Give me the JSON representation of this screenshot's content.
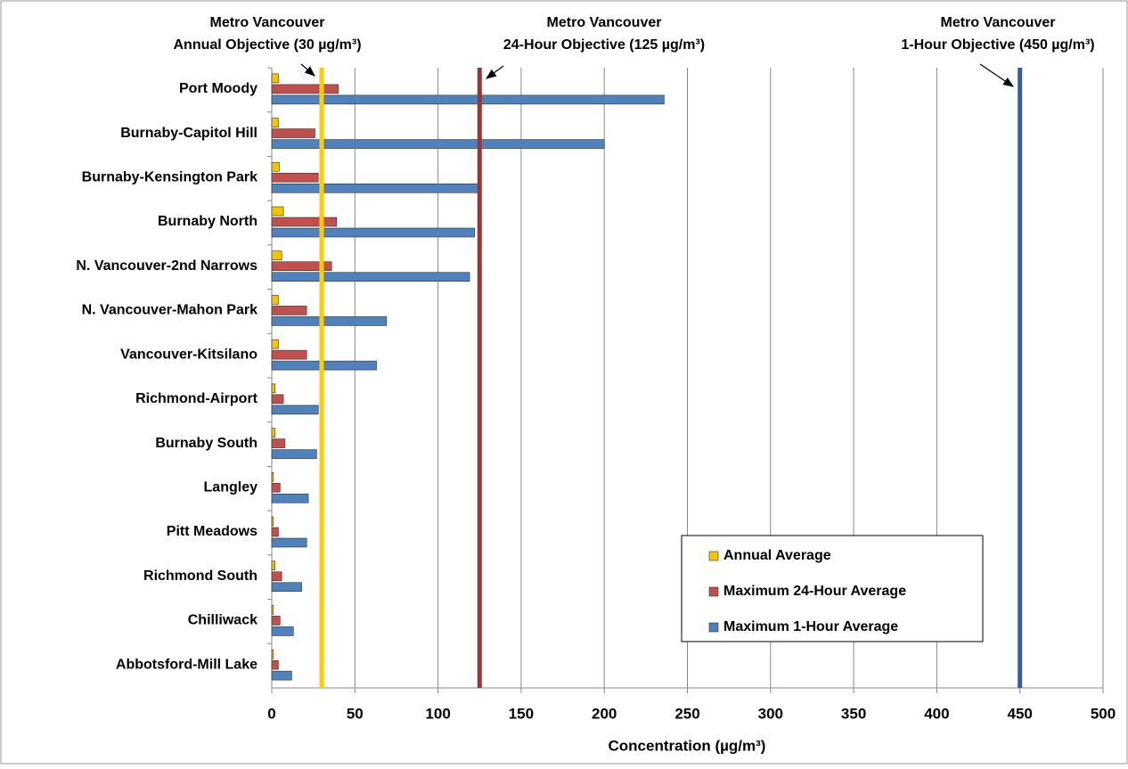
{
  "chart_data": {
    "type": "hbar",
    "x_label": "Concentration (µg/m³)",
    "categories": [
      "Port Moody",
      "Burnaby-Capitol Hill",
      "Burnaby-Kensington Park",
      "Burnaby North",
      "N. Vancouver-2nd Narrows",
      "N. Vancouver-Mahon Park",
      "Vancouver-Kitsilano",
      "Richmond-Airport",
      "Burnaby South",
      "Langley",
      "Pitt Meadows",
      "Richmond South",
      "Chilliwack",
      "Abbotsford-Mill Lake"
    ],
    "series": [
      {
        "name": "Annual Average",
        "color": "#f2c500",
        "values": [
          4,
          4,
          4.5,
          7,
          6,
          4,
          4,
          2,
          2,
          1,
          1,
          2,
          1,
          1
        ]
      },
      {
        "name": "Maximum 24-Hour Average",
        "color": "#c0504d",
        "values": [
          40,
          26,
          28,
          39,
          36,
          21,
          21,
          7,
          8,
          5,
          4,
          6,
          5,
          4
        ]
      },
      {
        "name": "Maximum 1-Hour Average",
        "color": "#4f81bd",
        "values": [
          236,
          200,
          126,
          122,
          119,
          69,
          63,
          28,
          27,
          22,
          21,
          18,
          13,
          12
        ]
      }
    ],
    "xlim": [
      0,
      500
    ],
    "xticks": [
      0,
      50,
      100,
      150,
      200,
      250,
      300,
      350,
      400,
      450,
      500
    ],
    "grid": true,
    "legend": "lower-right",
    "reference_lines": [
      {
        "value": 30,
        "color": "#ffcc00",
        "label": [
          "Metro Vancouver",
          "Annual Objective (30 µg/m³)"
        ]
      },
      {
        "value": 125,
        "color": "#953735",
        "label": [
          "Metro Vancouver",
          "24-Hour Objective (125 µg/m³)"
        ]
      },
      {
        "value": 450,
        "color": "#376092",
        "label": [
          "Metro Vancouver",
          "1-Hour Objective (450 µg/m³)"
        ]
      }
    ]
  }
}
